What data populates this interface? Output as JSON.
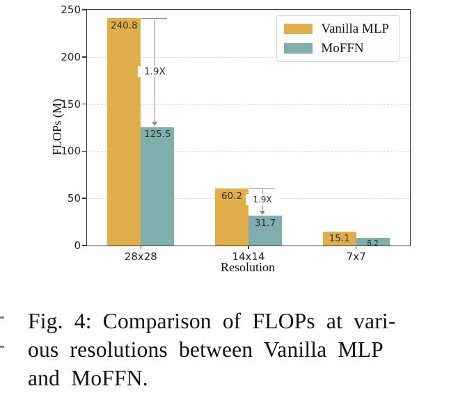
{
  "figure": {
    "caption_lines": [
      "Fig. 4: Comparison of FLOPs at vari-",
      "ous resolutions between Vanilla MLP",
      "and MoFFN."
    ]
  },
  "chart_data": {
    "type": "bar",
    "categories": [
      "28x28",
      "14x14",
      "7x7"
    ],
    "series": [
      {
        "name": "Vanilla MLP",
        "color": "#E0AF4C",
        "values": [
          240.8,
          60.2,
          15.1
        ]
      },
      {
        "name": "MoFFN",
        "color": "#7FAEAD",
        "values": [
          125.5,
          31.7,
          8.2
        ]
      }
    ],
    "value_labels": [
      [
        "240.8",
        "60.2",
        "15.1"
      ],
      [
        "125.5",
        "31.7",
        "8.2"
      ]
    ],
    "title": "",
    "xlabel": "Resolution",
    "ylabel": "FLOPs (M)",
    "ylim": [
      0,
      250
    ],
    "yticks": [
      0,
      50,
      100,
      150,
      200,
      250
    ],
    "grid": "horizontal-dashed",
    "legend_position": "upper right",
    "annotations": [
      {
        "group": 0,
        "label": "1.9X"
      },
      {
        "group": 1,
        "label": "1.9X"
      }
    ],
    "colors": {
      "vanilla_mlp": "#E0AF4C",
      "moffn": "#7FAEAD",
      "spine": "#3b3b3b",
      "grid": "#dcdcdc",
      "annotation_gray": "#8a8a8a",
      "value_text": "#2e2e2e",
      "caption_text": "#111111"
    }
  }
}
